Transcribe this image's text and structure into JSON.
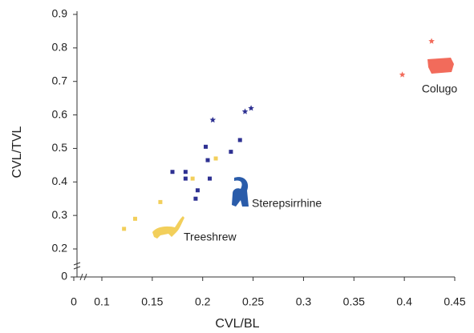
{
  "chart_data": {
    "type": "scatter",
    "x_label": "CVL/BL",
    "y_label": "CVL/TVL",
    "xlim": [
      0.075,
      0.45
    ],
    "ylim": [
      0.175,
      0.9
    ],
    "xticks": [
      0,
      0.1,
      0.15,
      0.2,
      0.25,
      0.3,
      0.35,
      0.4,
      0.45
    ],
    "yticks": [
      0,
      0.2,
      0.3,
      0.4,
      0.5,
      0.6,
      0.7,
      0.8,
      0.9
    ],
    "axis_break": true,
    "annotations": [
      "Colugo",
      "Sterepsirrhine",
      "Treeshrew"
    ],
    "series": [
      {
        "color": "#f2cf5b",
        "marker": "square",
        "x": [
          0.122,
          0.133,
          0.158,
          0.19,
          0.213
        ],
        "y": [
          0.26,
          0.29,
          0.34,
          0.41,
          0.47
        ]
      },
      {
        "color": "#2e3192",
        "marker": "square",
        "x": [
          0.17,
          0.183,
          0.183,
          0.193,
          0.195,
          0.203,
          0.205,
          0.207,
          0.228,
          0.237
        ],
        "y": [
          0.43,
          0.43,
          0.41,
          0.35,
          0.375,
          0.505,
          0.465,
          0.41,
          0.49,
          0.525
        ]
      },
      {
        "color": "#2e3192",
        "marker": "star",
        "x": [
          0.21,
          0.242,
          0.248
        ],
        "y": [
          0.585,
          0.61,
          0.62
        ]
      },
      {
        "color": "#f26b5b",
        "marker": "star",
        "x": [
          0.398,
          0.427
        ],
        "y": [
          0.72,
          0.82
        ]
      }
    ]
  }
}
